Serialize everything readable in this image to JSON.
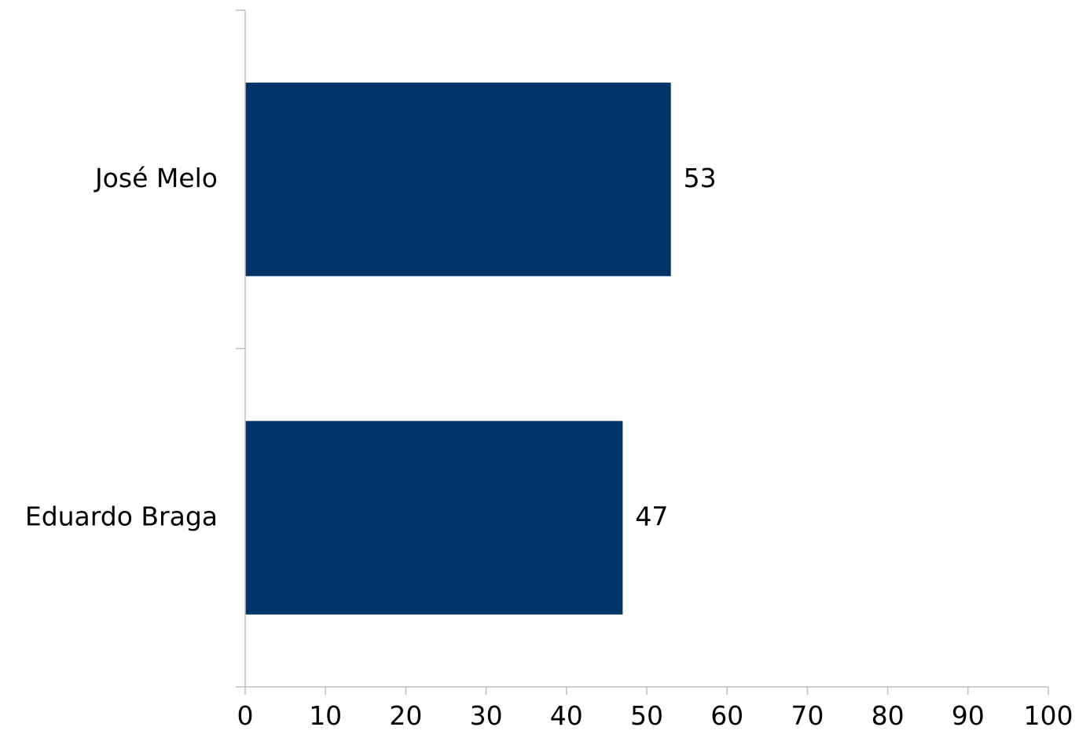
{
  "chart_data": {
    "type": "bar",
    "orientation": "horizontal",
    "categories": [
      "José Melo",
      "Eduardo Braga"
    ],
    "values": [
      53,
      47
    ],
    "data_labels": [
      "53",
      "47"
    ],
    "xlim": [
      0,
      100
    ],
    "xticks": [
      0,
      10,
      20,
      30,
      40,
      50,
      60,
      70,
      80,
      90,
      100
    ],
    "xtick_labels": [
      "0",
      "10",
      "20",
      "30",
      "40",
      "50",
      "60",
      "70",
      "80",
      "90",
      "100"
    ],
    "title": "",
    "xlabel": "",
    "ylabel": "",
    "grid": false,
    "legend": "none",
    "bar_color": "#003366"
  }
}
